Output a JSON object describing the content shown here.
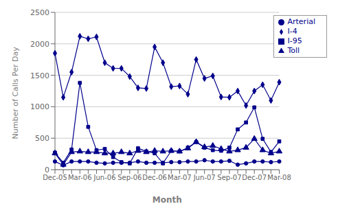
{
  "chart_data": {
    "type": "line",
    "xlabel": "Month",
    "ylabel": "Number of Calls Per Day",
    "categories": [
      "Dec-05",
      null,
      null,
      "Mar-06",
      null,
      null,
      "Jun-06",
      null,
      null,
      "Sep-06",
      null,
      null,
      "Dec-06",
      null,
      null,
      "Mar-07",
      null,
      null,
      "Jun-07",
      null,
      null,
      "Sep-07",
      null,
      null,
      "Dec-07",
      null,
      null,
      "Mar-08"
    ],
    "series": [
      {
        "name": "I-4",
        "color": "#00008B",
        "marker": "diamond",
        "values": [
          1850,
          1150,
          1550,
          2120,
          2080,
          2110,
          1700,
          1610,
          1610,
          1480,
          1300,
          1290,
          1950,
          1700,
          1320,
          1330,
          1200,
          1750,
          1450,
          1490,
          1155,
          1150,
          1250,
          1020,
          1250,
          1350,
          1100,
          1390
        ]
      },
      {
        "name": "I-95",
        "color": "#00008B",
        "marker": "square",
        "values": [
          270,
          110,
          320,
          1380,
          680,
          310,
          330,
          200,
          120,
          100,
          340,
          290,
          260,
          100,
          300,
          290,
          350,
          440,
          350,
          310,
          300,
          350,
          640,
          750,
          990,
          490,
          280,
          450
        ]
      },
      {
        "name": "Toll",
        "color": "#00008B",
        "marker": "triangle",
        "values": [
          260,
          80,
          280,
          290,
          280,
          280,
          260,
          260,
          280,
          260,
          300,
          280,
          300,
          290,
          300,
          290,
          340,
          440,
          360,
          380,
          330,
          290,
          310,
          350,
          490,
          310,
          260,
          290
        ]
      },
      {
        "name": "Arterial",
        "color": "#00008B",
        "marker": "circle",
        "values": [
          130,
          70,
          130,
          130,
          130,
          110,
          100,
          110,
          110,
          110,
          130,
          110,
          110,
          110,
          120,
          120,
          130,
          130,
          150,
          130,
          130,
          140,
          80,
          100,
          130,
          130,
          120,
          130
        ]
      }
    ],
    "ylim": [
      0,
      2500
    ],
    "yticks": [
      0,
      500,
      1000,
      1500,
      2000,
      2500
    ],
    "grid": true,
    "legend": "upper right"
  }
}
